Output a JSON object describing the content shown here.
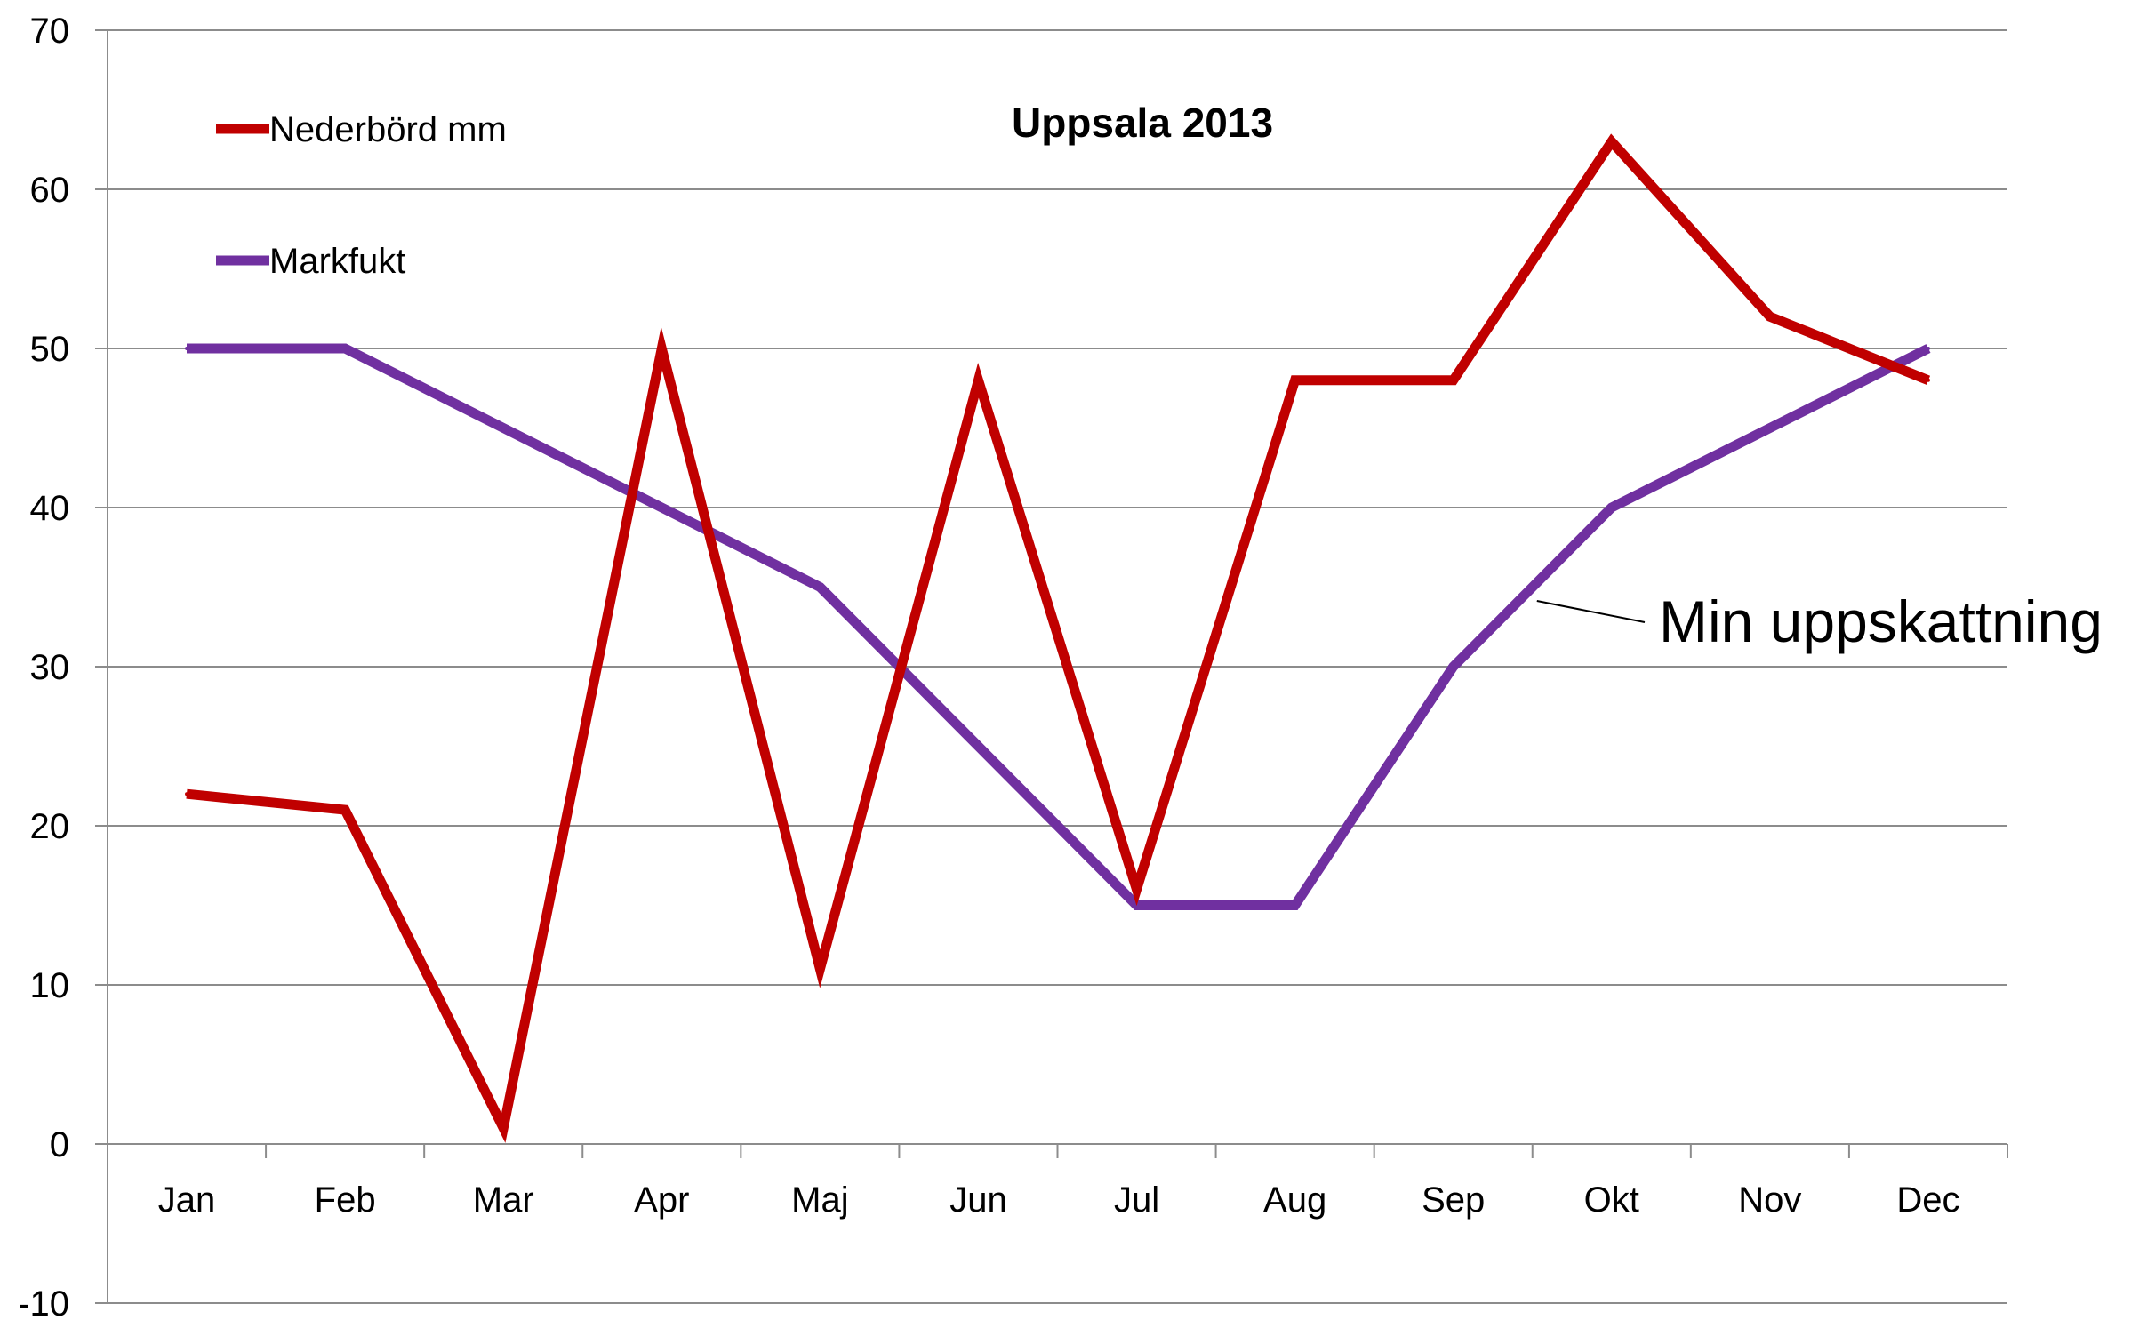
{
  "chart_data": {
    "type": "line",
    "title": "Uppsala 2013",
    "categories": [
      "Jan",
      "Feb",
      "Mar",
      "Apr",
      "Maj",
      "Jun",
      "Jul",
      "Aug",
      "Sep",
      "Okt",
      "Nov",
      "Dec"
    ],
    "series": [
      {
        "name": "Nederbörd mm",
        "color": "#C00000",
        "values": [
          22,
          21,
          1,
          50,
          11,
          48,
          16,
          48,
          48,
          63,
          52,
          48
        ]
      },
      {
        "name": "Markfukt",
        "color": "#7030A0",
        "values": [
          50,
          50,
          45,
          40,
          35,
          25,
          15,
          15,
          30,
          40,
          45,
          50
        ]
      }
    ],
    "ylim": [
      -10,
      70
    ],
    "yticks": [
      -10,
      0,
      10,
      20,
      30,
      40,
      50,
      60,
      70
    ],
    "grid": true,
    "legend": "top-left",
    "annotation": {
      "text": "Min uppskattning",
      "series": "Markfukt",
      "at_category": "Okt"
    }
  }
}
